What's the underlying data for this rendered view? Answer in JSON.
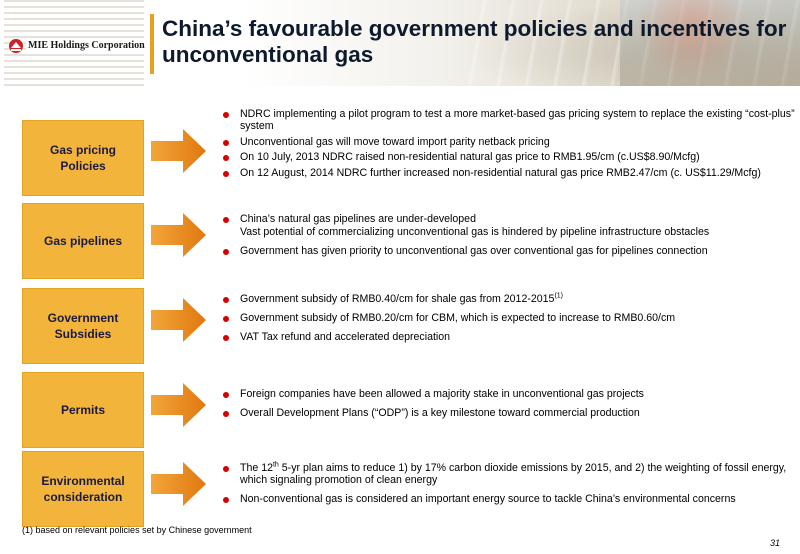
{
  "company": {
    "logo_text": "MIE Holdings Corporation"
  },
  "title": "China’s favourable government policies and incentives for unconventional gas",
  "colors": {
    "accent": "#f2b43a",
    "bullet": "#d60000",
    "arrow": "#e38a18"
  },
  "rows": [
    {
      "label_line1": "Gas pricing",
      "label_line2": "Policies",
      "bullets": [
        "NDRC implementing a pilot program to test a more market-based gas pricing system to replace the existing “cost-plus” system",
        "Unconventional gas will move toward import parity netback pricing",
        "On 10 July, 2013 NDRC raised non-residential natural gas price to RMB1.95/cm (c.US$8.90/Mcfg)",
        "On 12 August, 2014 NDRC further increased non-residential natural gas price RMB2.47/cm (c. US$11.29/Mcfg)"
      ]
    },
    {
      "label_line1": "Gas pipelines",
      "label_line2": "",
      "bullets": [
        "China’s natural gas pipelines are under-developed",
        "Vast potential of commercializing unconventional gas is hindered by pipeline infrastructure obstacles",
        "Government has given priority to unconventional gas over conventional gas for pipelines connection"
      ]
    },
    {
      "label_line1": "Government",
      "label_line2": "Subsidies",
      "bullets": [
        "Government subsidy of RMB0.40/cm for shale gas from 2012-2015",
        "Government subsidy of RMB0.20/cm for CBM, which is expected to increase to RMB0.60/cm",
        "VAT Tax refund and accelerated depreciation"
      ],
      "superscript": "(1)"
    },
    {
      "label_line1": "Permits",
      "label_line2": "",
      "bullets": [
        "Foreign companies have been allowed a majority stake in unconventional gas projects",
        "Overall Development Plans (“ODP”) is a key milestone toward commercial production"
      ]
    },
    {
      "label_line1": "Environmental",
      "label_line2": "consideration",
      "bullets": [
        "The 12",
        "Non-conventional gas is considered an important energy source to tackle China’s environmental concerns"
      ],
      "env_sup": "th",
      "env_rest": " 5-yr plan aims to reduce 1) by 17% carbon dioxide emissions by 2015, and 2) the weighting of fossil energy, which signaling promotion of clean energy"
    }
  ],
  "footnote": "(1) based on relevant policies set by Chinese government",
  "page_number": "31"
}
